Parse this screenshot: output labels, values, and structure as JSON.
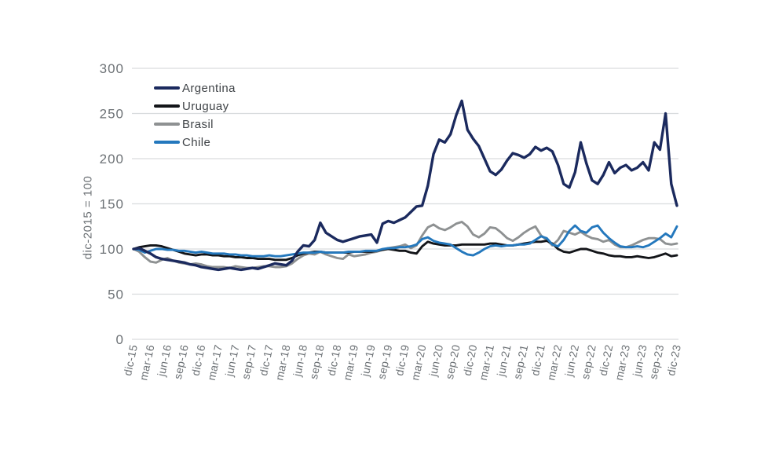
{
  "figure": {
    "background": "#ffffff"
  },
  "legend": {
    "position": "top-left"
  },
  "chart_data": {
    "type": "line",
    "title": "",
    "xlabel": "",
    "ylabel": "dic-2015 = 100",
    "ylim": [
      0,
      300
    ],
    "y_ticks": [
      0,
      50,
      100,
      150,
      200,
      250,
      300
    ],
    "grid": "horizontal",
    "grid_color": "#d9dcde",
    "tick_text_color": "#6d7276",
    "x_unit": "monthly points, labels every 3 months",
    "x_tick_labels": [
      "dic-15",
      "mar-16",
      "jun-16",
      "sep-16",
      "dic-16",
      "mar-17",
      "jun-17",
      "sep-17",
      "dic-17",
      "mar-18",
      "jun-18",
      "sep-18",
      "dic-18",
      "mar-19",
      "jun-19",
      "sep-19",
      "dic-19",
      "mar-20",
      "jun-20",
      "sep-20",
      "dic-20",
      "mar-21",
      "jun-21",
      "sep-21",
      "dic-21",
      "mar-22",
      "jun-22",
      "sep-22",
      "dic-22",
      "mar-23",
      "jun-23",
      "sep-23",
      "dic-23"
    ],
    "series": [
      {
        "name": "Argentina",
        "color": "#1b2a5e",
        "values": [
          100,
          101,
          98,
          95,
          91,
          89,
          88,
          87,
          86,
          85,
          83,
          82,
          80,
          79,
          78,
          77,
          78,
          79,
          78,
          77,
          78,
          79,
          78,
          80,
          82,
          84,
          83,
          82,
          87,
          97,
          104,
          103,
          110,
          129,
          118,
          114,
          110,
          108,
          110,
          112,
          114,
          115,
          116,
          107,
          128,
          131,
          129,
          132,
          135,
          141,
          147,
          148,
          170,
          205,
          221,
          218,
          227,
          248,
          264,
          232,
          222,
          214,
          200,
          186,
          182,
          188,
          198,
          206,
          204,
          201,
          205,
          213,
          209,
          212,
          208,
          193,
          172,
          168,
          185,
          218,
          195,
          176,
          172,
          182,
          196,
          184,
          190,
          193,
          187,
          190,
          196,
          187,
          218,
          210,
          250,
          172,
          148
        ]
      },
      {
        "name": "Uruguay",
        "color": "#131519",
        "values": [
          100,
          102,
          103,
          104,
          104,
          103,
          101,
          99,
          97,
          95,
          94,
          93,
          94,
          94,
          93,
          93,
          92,
          92,
          91,
          91,
          90,
          90,
          89,
          89,
          89,
          88,
          88,
          88,
          90,
          93,
          95,
          96,
          97,
          97,
          96,
          96,
          96,
          96,
          96,
          97,
          97,
          97,
          97,
          98,
          99,
          100,
          99,
          98,
          98,
          96,
          95,
          103,
          108,
          106,
          105,
          104,
          104,
          104,
          105,
          105,
          105,
          105,
          105,
          106,
          106,
          105,
          104,
          104,
          105,
          106,
          107,
          108,
          108,
          109,
          106,
          100,
          97,
          96,
          98,
          100,
          100,
          98,
          96,
          95,
          93,
          92,
          92,
          91,
          91,
          92,
          91,
          90,
          91,
          93,
          95,
          92,
          93
        ]
      },
      {
        "name": "Brasil",
        "color": "#8e9192",
        "values": [
          100,
          97,
          91,
          86,
          85,
          88,
          90,
          87,
          85,
          84,
          83,
          84,
          83,
          81,
          80,
          80,
          80,
          79,
          81,
          80,
          79,
          79,
          80,
          81,
          81,
          80,
          80,
          81,
          84,
          89,
          93,
          95,
          94,
          97,
          94,
          92,
          90,
          89,
          94,
          92,
          93,
          94,
          96,
          97,
          99,
          101,
          102,
          103,
          105,
          101,
          104,
          115,
          124,
          127,
          123,
          121,
          124,
          128,
          130,
          125,
          116,
          113,
          117,
          124,
          123,
          118,
          112,
          109,
          113,
          118,
          122,
          125,
          115,
          110,
          104,
          110,
          120,
          118,
          116,
          119,
          115,
          112,
          111,
          108,
          110,
          105,
          102,
          102,
          104,
          107,
          110,
          112,
          112,
          111,
          106,
          105,
          106
        ]
      },
      {
        "name": "Chile",
        "color": "#2478bd",
        "values": [
          100,
          99,
          96,
          98,
          100,
          100,
          99,
          99,
          98,
          98,
          97,
          96,
          97,
          96,
          95,
          95,
          95,
          94,
          94,
          93,
          93,
          92,
          92,
          92,
          93,
          92,
          92,
          93,
          94,
          95,
          96,
          96,
          96,
          97,
          96,
          96,
          96,
          96,
          97,
          97,
          97,
          98,
          98,
          98,
          100,
          101,
          101,
          102,
          102,
          103,
          105,
          111,
          113,
          109,
          107,
          106,
          105,
          101,
          97,
          94,
          93,
          96,
          100,
          103,
          104,
          103,
          104,
          104,
          105,
          105,
          106,
          110,
          114,
          112,
          105,
          103,
          110,
          120,
          126,
          120,
          118,
          124,
          126,
          118,
          112,
          107,
          103,
          102,
          102,
          103,
          102,
          104,
          108,
          112,
          117,
          113,
          125
        ]
      }
    ],
    "legend_entries": [
      "Argentina",
      "Uruguay",
      "Brasil",
      "Chile"
    ]
  }
}
